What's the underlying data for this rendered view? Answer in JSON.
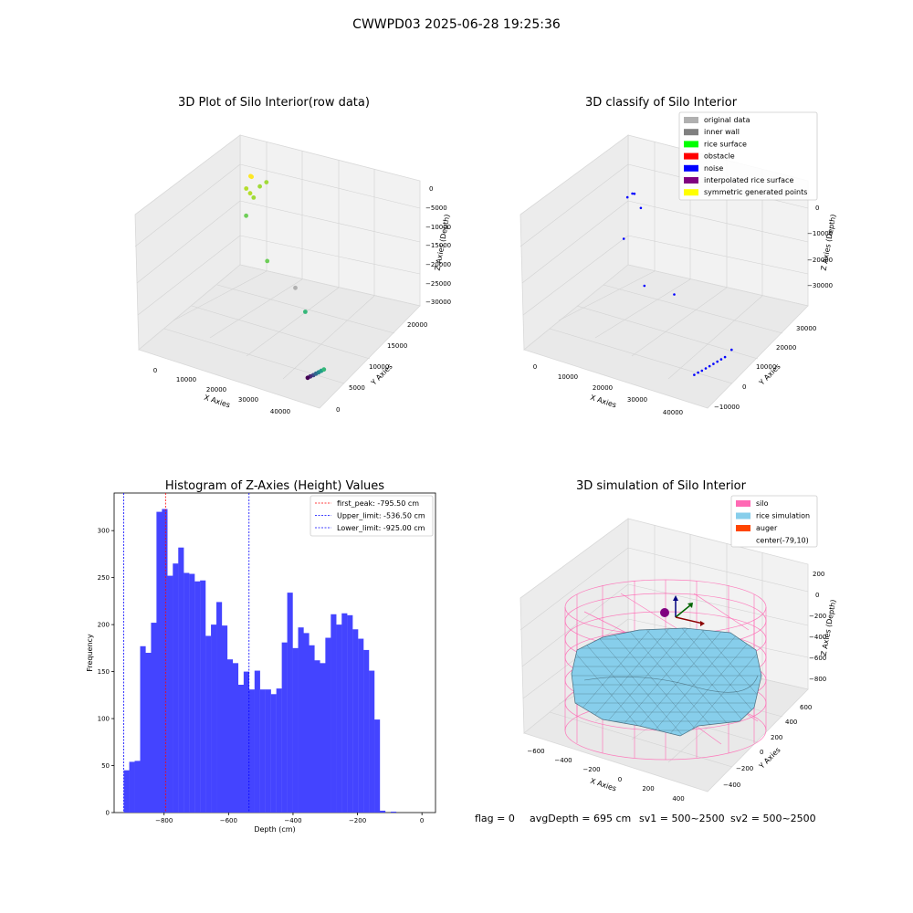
{
  "figure": {
    "title": "CWWPD03 2025-06-28 19:25:36",
    "footer": [
      "flag = 0",
      "avgDepth = 695 cm",
      "sv1 = 500~2500",
      "sv2 = 500~2500"
    ]
  },
  "chart_data": [
    {
      "type": "scatter",
      "projection": "3d",
      "title": "3D Plot of Silo Interior(row data)",
      "xlabel": "X Axies",
      "ylabel": "Y Axies",
      "zlabel": "Z Axies (Depth)",
      "xticks": [
        "0",
        "10000",
        "20000",
        "30000",
        "40000"
      ],
      "yticks": [
        "0",
        "5000",
        "10000",
        "15000",
        "20000"
      ],
      "zticks": [
        "0",
        "−5000",
        "−10000",
        "−15000",
        "−20000",
        "−25000",
        "−30000"
      ],
      "xlim": [
        -5000,
        47000
      ],
      "ylim": [
        -2000,
        22000
      ],
      "zlim": [
        -33000,
        1000
      ],
      "colormap": "viridis",
      "points": [
        {
          "x": 1200,
          "y": 19500,
          "z": -6800,
          "color": "#fde725"
        },
        {
          "x": 1600,
          "y": 19300,
          "z": -6600,
          "color": "#fde725"
        },
        {
          "x": 800,
          "y": 19700,
          "z": -7000,
          "color": "#fde725"
        },
        {
          "x": 1000,
          "y": 18500,
          "z": -9000,
          "color": "#b5de2b"
        },
        {
          "x": 2500,
          "y": 18200,
          "z": -9500,
          "color": "#b5de2b"
        },
        {
          "x": 4000,
          "y": 17800,
          "z": -9800,
          "color": "#a0da39"
        },
        {
          "x": 4800,
          "y": 18600,
          "z": -7500,
          "color": "#a0da39"
        },
        {
          "x": 6200,
          "y": 19000,
          "z": -6400,
          "color": "#a0da39"
        },
        {
          "x": 2800,
          "y": 17000,
          "z": -14000,
          "color": "#6ece58"
        },
        {
          "x": 13500,
          "y": 13200,
          "z": -19000,
          "color": "#6ece58"
        },
        {
          "x": 24500,
          "y": 10800,
          "z": -20500,
          "color": "#b0b0b0"
        },
        {
          "x": 31000,
          "y": 7800,
          "z": -22000,
          "color": "#35b779"
        },
        {
          "x": 39500,
          "y": 2700,
          "z": -31000,
          "color": "#3e4989"
        },
        {
          "x": 39900,
          "y": 3000,
          "z": -30800,
          "color": "#31688e"
        },
        {
          "x": 40300,
          "y": 3300,
          "z": -30600,
          "color": "#26828e"
        },
        {
          "x": 40700,
          "y": 3600,
          "z": -30400,
          "color": "#1f9e89"
        },
        {
          "x": 41100,
          "y": 3900,
          "z": -30200,
          "color": "#35b779"
        },
        {
          "x": 39000,
          "y": 2400,
          "z": -31200,
          "color": "#482878"
        },
        {
          "x": 38600,
          "y": 2100,
          "z": -31400,
          "color": "#440154"
        }
      ]
    },
    {
      "type": "scatter",
      "projection": "3d",
      "title": "3D classify of Silo Interior",
      "xlabel": "X Axies",
      "ylabel": "Y Axies",
      "zlabel": "Z Axies (Depth)",
      "xticks": [
        "0",
        "10000",
        "20000",
        "30000",
        "40000"
      ],
      "yticks": [
        "−10000",
        "0",
        "10000",
        "20000",
        "30000"
      ],
      "zticks": [
        "0",
        "−10000",
        "−20000",
        "−30000"
      ],
      "xlim": [
        -5000,
        47000
      ],
      "ylim": [
        -15000,
        35000
      ],
      "zlim": [
        -34000,
        2000
      ],
      "legend": [
        {
          "label": "original data",
          "color": "#b0b0b0"
        },
        {
          "label": "inner wall",
          "color": "#808080"
        },
        {
          "label": "rice surface",
          "color": "#00ff00"
        },
        {
          "label": "obstacle",
          "color": "#ff0000"
        },
        {
          "label": "noise",
          "color": "#0000ff"
        },
        {
          "label": "interpolated rice surface",
          "color": "#800080"
        },
        {
          "label": "symmetric generated points",
          "color": "#ffff00"
        }
      ],
      "legend_loc": "upper right",
      "points": [
        {
          "x": 1500,
          "y": 26000,
          "z": -9000,
          "color": "#0000ff"
        },
        {
          "x": 1800,
          "y": 26500,
          "z": -9200,
          "color": "#0000ff"
        },
        {
          "x": 700,
          "y": 25000,
          "z": -9800,
          "color": "#0000ff"
        },
        {
          "x": 4500,
          "y": 25000,
          "z": -11500,
          "color": "#0000ff"
        },
        {
          "x": 2600,
          "y": 20000,
          "z": -18000,
          "color": "#0000ff"
        },
        {
          "x": 12000,
          "y": 14000,
          "z": -25000,
          "color": "#0000ff"
        },
        {
          "x": 24000,
          "y": 8000,
          "z": -21000,
          "color": "#0000ff"
        },
        {
          "x": 42000,
          "y": 5000,
          "z": -29000,
          "color": "#0000ff"
        },
        {
          "x": 39000,
          "y": -6000,
          "z": -31000,
          "color": "#0000ff"
        },
        {
          "x": 39500,
          "y": -5000,
          "z": -30800,
          "color": "#0000ff"
        },
        {
          "x": 40000,
          "y": -4000,
          "z": -30500,
          "color": "#0000ff"
        },
        {
          "x": 40500,
          "y": -3000,
          "z": -30200,
          "color": "#0000ff"
        },
        {
          "x": 41000,
          "y": -2000,
          "z": -29900,
          "color": "#0000ff"
        },
        {
          "x": 41500,
          "y": -1000,
          "z": -29600,
          "color": "#0000ff"
        },
        {
          "x": 42000,
          "y": 0,
          "z": -29300,
          "color": "#0000ff"
        },
        {
          "x": 42500,
          "y": 1000,
          "z": -29000,
          "color": "#0000ff"
        },
        {
          "x": 38500,
          "y": -7000,
          "z": -31300,
          "color": "#0000ff"
        }
      ]
    },
    {
      "type": "bar",
      "title": "Histogram of Z-Axies (Height) Values",
      "xlabel": "Depth (cm)",
      "ylabel": "Frequency",
      "xticks": [
        -800,
        -600,
        -400,
        -200,
        0
      ],
      "yticks": [
        0,
        50,
        100,
        150,
        200,
        250,
        300
      ],
      "xlim": [
        -955,
        42
      ],
      "ylim": [
        0,
        340
      ],
      "bar_color": "#4444ff",
      "bin_width": 16.9,
      "bin_start": -925,
      "values": [
        45,
        54,
        55,
        177,
        170,
        202,
        320,
        323,
        252,
        265,
        282,
        255,
        254,
        246,
        247,
        188,
        200,
        224,
        199,
        163,
        159,
        136,
        150,
        131,
        151,
        131,
        131,
        126,
        132,
        181,
        234,
        175,
        197,
        191,
        178,
        162,
        159,
        186,
        211,
        200,
        212,
        210,
        195,
        185,
        173,
        151,
        99,
        2,
        0,
        1
      ],
      "vlines": [
        {
          "x": -795.5,
          "label": "first_peak: -795.50 cm",
          "color": "#ff0000"
        },
        {
          "x": -536.5,
          "label": "Upper_limit: -536.50 cm",
          "color": "#0000ff"
        },
        {
          "x": -925.0,
          "label": "Lower_limit: -925.00 cm",
          "color": "#0000ff"
        }
      ],
      "legend_loc": "upper right"
    },
    {
      "type": "surface",
      "projection": "3d",
      "title": "3D simulation of Silo Interior",
      "xlabel": "X Axies",
      "ylabel": "Y Axies",
      "zlabel": "Z Axies (Depth)",
      "xticks": [
        "−600",
        "−400",
        "−200",
        "0",
        "200",
        "400"
      ],
      "yticks": [
        "−400",
        "−200",
        "0",
        "200",
        "400",
        "600"
      ],
      "zticks": [
        "200",
        "0",
        "−200",
        "−400",
        "−600",
        "−800"
      ],
      "legend": [
        {
          "label": "silo",
          "color": "#ff69b4"
        },
        {
          "label": "rice simulation",
          "color": "#87ceeb"
        },
        {
          "label": "auger",
          "color": "#ff4500"
        },
        {
          "label": "center(-79,10)",
          "color": ""
        }
      ],
      "legend_loc": "upper right",
      "silo_color": "#ff69b4",
      "surface_color": "#87ceeb",
      "auger_color": "#800080"
    }
  ]
}
